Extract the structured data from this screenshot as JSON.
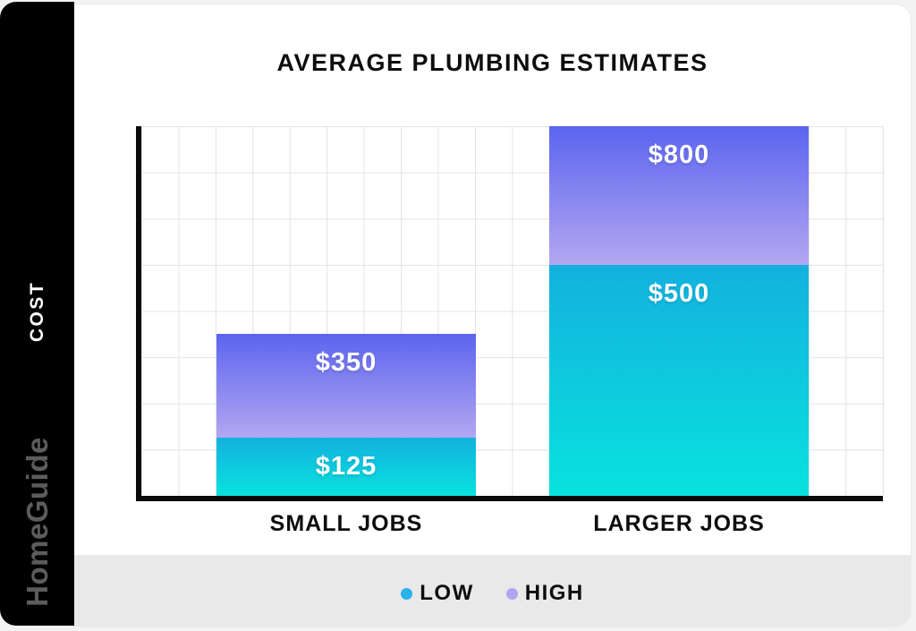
{
  "page": {
    "background": "#f3f3f3",
    "card_background": "#ffffff",
    "footer_background": "#e9e9e9",
    "sidebar_background": "#000000"
  },
  "sidebar": {
    "cost_label": "COST",
    "brand": "HomeGuide",
    "cost_color": "#ffffff",
    "brand_color": "#5c5c5c"
  },
  "chart_data": {
    "type": "bar",
    "stacked": true,
    "title": "AVERAGE PLUMBING ESTIMATES",
    "categories": [
      "SMALL JOBS",
      "LARGER JOBS"
    ],
    "series": [
      {
        "name": "LOW",
        "values": [
          125,
          500
        ],
        "labels": [
          "$125",
          "$500"
        ],
        "gradient_top": "#13b1de",
        "gradient_bottom": "#09e2de"
      },
      {
        "name": "HIGH",
        "values": [
          350,
          800
        ],
        "labels": [
          "$350",
          "$800"
        ],
        "gradient_top": "#5b64ef",
        "gradient_bottom": "#b3a7f0"
      }
    ],
    "value_semantics": "HIGH values are bar tops; HIGH segment spans from LOW value to HIGH value",
    "xlabel": "",
    "ylabel": "COST",
    "ylim": [
      0,
      800
    ],
    "grid": {
      "rows": 8,
      "columns": 20,
      "color": "#e4e4e4",
      "visible": true
    },
    "axis_color": "#0b0b0b",
    "legend": {
      "position": "bottom",
      "items": [
        {
          "label": "LOW",
          "dot_color": "#29b1e8"
        },
        {
          "label": "HIGH",
          "dot_color": "#b1a5f2"
        }
      ]
    }
  }
}
